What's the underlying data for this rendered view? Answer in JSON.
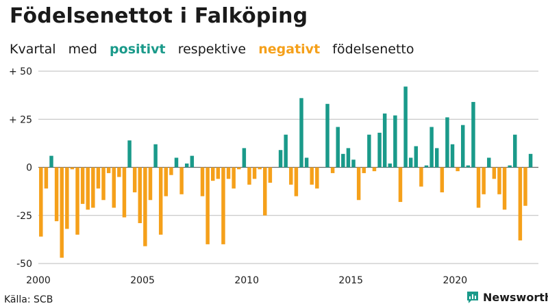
{
  "title": "Födelsenettot i Falköping",
  "subtitle": {
    "part1": "Kvartal",
    "part2": "med",
    "positive_word": "positivt",
    "part3": "respektive",
    "negative_word": "negativt",
    "part4": "födelsenetto"
  },
  "colors": {
    "positive": "#1a9a8a",
    "negative": "#f5a01a",
    "text": "#1a1a1a",
    "grid": "#bbbbbb"
  },
  "source": "Källa: SCB",
  "brand": "Newsworthy",
  "brand_icon": "newsworthy-logo-icon",
  "chart_data": {
    "type": "bar",
    "title": "Födelsenettot i Falköping",
    "subtitle": "Kvartal med positivt respektive negativt födelsenetto",
    "xlabel": "",
    "ylabel": "",
    "ylim": [
      -50,
      50
    ],
    "yticks": [
      50,
      25,
      0,
      -25,
      -50
    ],
    "ytick_labels": [
      "+ 50",
      "+ 25",
      "0",
      "-25",
      "-50"
    ],
    "xticks": [
      2000,
      2005,
      2010,
      2015,
      2020
    ],
    "xlim": [
      2000.0,
      2024.0
    ],
    "grid": true,
    "start": "2000 Q1",
    "frequency": "quarterly",
    "values": [
      -36,
      -11,
      6,
      -28,
      -47,
      -32,
      -1,
      -35,
      -19,
      -22,
      -21,
      -11,
      -17,
      -3,
      -21,
      -5,
      -26,
      14,
      -13,
      -29,
      -41,
      -17,
      12,
      -35,
      -15,
      -4,
      5,
      -14,
      2,
      6,
      0,
      -15,
      -40,
      -7,
      -6,
      -40,
      -6,
      -11,
      -1,
      10,
      -9,
      -6,
      -1,
      -25,
      -8,
      0,
      9,
      17,
      -9,
      -15,
      36,
      5,
      -9,
      -11,
      0,
      33,
      -3,
      21,
      7,
      10,
      4,
      -17,
      -3,
      17,
      -2,
      18,
      28,
      2,
      27,
      -18,
      42,
      5,
      11,
      -10,
      1,
      21,
      10,
      -13,
      26,
      12,
      -2,
      22,
      1,
      34,
      -21,
      -14,
      5,
      -6,
      -14,
      -22,
      1,
      17,
      -38,
      -20,
      7
    ]
  }
}
